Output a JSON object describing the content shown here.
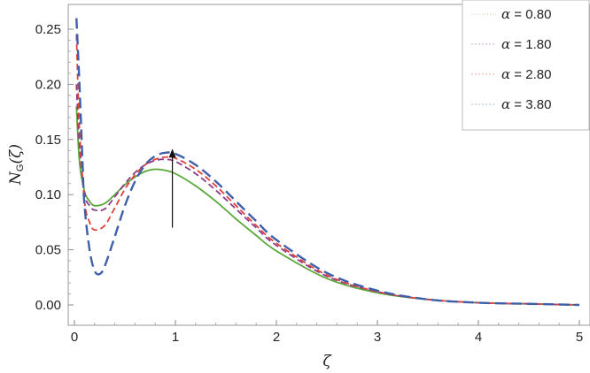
{
  "chart_data": {
    "type": "line",
    "xlabel": "ζ",
    "ylabel_main": "N",
    "ylabel_sub": "G",
    "ylabel_arg": "(ζ)",
    "xlim": [
      0,
      5
    ],
    "ylim": [
      -0.012,
      0.285
    ],
    "xticks": [
      0,
      1,
      2,
      3,
      4,
      5
    ],
    "xtick_labels": [
      "0",
      "1",
      "2",
      "3",
      "4",
      "5"
    ],
    "yticks": [
      0.0,
      0.05,
      0.1,
      0.15,
      0.2,
      0.25
    ],
    "ytick_labels": [
      "0.00",
      "0.05",
      "0.10",
      "0.15",
      "0.20",
      "0.25"
    ],
    "grid": false,
    "legend_position": "top-right",
    "annotation": {
      "type": "arrow",
      "direction": "up",
      "x": 0.97,
      "y_from": 0.07,
      "y_to": 0.14
    },
    "series": [
      {
        "name": "α = 0.80",
        "legend_symbol": "α",
        "legend_value": "= 0.80",
        "color": "#5aa73a",
        "dash": "solid",
        "x": [
          0.02,
          0.05,
          0.1,
          0.15,
          0.2,
          0.3,
          0.4,
          0.5,
          0.6,
          0.7,
          0.8,
          0.9,
          1.0,
          1.2,
          1.4,
          1.6,
          1.8,
          2.0,
          2.5,
          3.0,
          3.5,
          4.0,
          4.5,
          5.0
        ],
        "y": [
          0.18,
          0.13,
          0.103,
          0.094,
          0.09,
          0.092,
          0.1,
          0.109,
          0.116,
          0.121,
          0.123,
          0.122,
          0.119,
          0.108,
          0.094,
          0.078,
          0.063,
          0.049,
          0.024,
          0.011,
          0.005,
          0.002,
          0.001,
          0.0
        ]
      },
      {
        "name": "α = 1.80",
        "legend_symbol": "α",
        "legend_value": "= 1.80",
        "color": "#8e3a8a",
        "dash": "dash",
        "x": [
          0.02,
          0.05,
          0.1,
          0.15,
          0.2,
          0.3,
          0.4,
          0.5,
          0.6,
          0.7,
          0.8,
          0.9,
          1.0,
          1.2,
          1.4,
          1.6,
          1.8,
          2.0,
          2.5,
          3.0,
          3.5,
          4.0,
          4.5,
          5.0
        ],
        "y": [
          0.2,
          0.145,
          0.101,
          0.09,
          0.086,
          0.087,
          0.098,
          0.11,
          0.12,
          0.127,
          0.131,
          0.132,
          0.13,
          0.119,
          0.104,
          0.087,
          0.07,
          0.054,
          0.026,
          0.012,
          0.005,
          0.002,
          0.001,
          0.0
        ]
      },
      {
        "name": "α = 2.80",
        "legend_symbol": "α",
        "legend_value": "= 2.80",
        "color": "#e0423a",
        "dash": "dash",
        "x": [
          0.02,
          0.05,
          0.1,
          0.15,
          0.2,
          0.3,
          0.4,
          0.5,
          0.6,
          0.7,
          0.8,
          0.9,
          1.0,
          1.2,
          1.4,
          1.6,
          1.8,
          2.0,
          2.5,
          3.0,
          3.5,
          4.0,
          4.5,
          5.0
        ],
        "y": [
          0.245,
          0.16,
          0.094,
          0.075,
          0.068,
          0.072,
          0.088,
          0.105,
          0.118,
          0.127,
          0.132,
          0.134,
          0.133,
          0.123,
          0.108,
          0.09,
          0.072,
          0.056,
          0.027,
          0.012,
          0.005,
          0.002,
          0.001,
          0.0
        ]
      },
      {
        "name": "α = 3.80",
        "legend_symbol": "α",
        "legend_value": "= 3.80",
        "color": "#3f5fa8",
        "dash": "longdash",
        "x": [
          0.02,
          0.05,
          0.08,
          0.1,
          0.15,
          0.2,
          0.25,
          0.3,
          0.4,
          0.5,
          0.6,
          0.7,
          0.8,
          0.9,
          1.0,
          1.2,
          1.4,
          1.6,
          1.8,
          2.0,
          2.5,
          3.0,
          3.5,
          4.0,
          4.5,
          5.0
        ],
        "y": [
          0.26,
          0.2,
          0.13,
          0.09,
          0.05,
          0.031,
          0.028,
          0.035,
          0.062,
          0.09,
          0.112,
          0.127,
          0.135,
          0.138,
          0.137,
          0.127,
          0.112,
          0.094,
          0.076,
          0.059,
          0.029,
          0.013,
          0.005,
          0.002,
          0.001,
          0.0
        ]
      }
    ]
  }
}
